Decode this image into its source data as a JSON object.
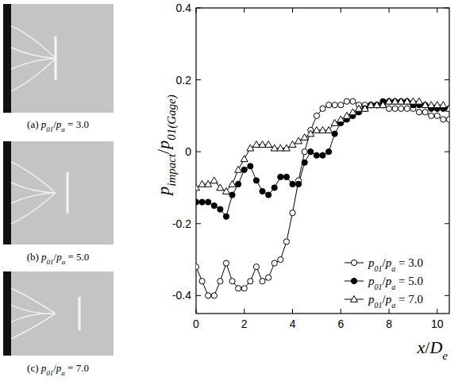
{
  "chart_data": {
    "type": "line",
    "x_label": "x/De",
    "y_label": "pimpact/p01(Gage)",
    "x": [
      0,
      0.25,
      0.5,
      0.75,
      1,
      1.25,
      1.5,
      1.75,
      2,
      2.25,
      2.5,
      2.75,
      3,
      3.25,
      3.5,
      3.75,
      4,
      4.25,
      4.5,
      4.75,
      5,
      5.25,
      5.5,
      5.75,
      6,
      6.25,
      6.5,
      6.75,
      7,
      7.25,
      7.5,
      7.75,
      8,
      8.25,
      8.5,
      8.75,
      9,
      9.25,
      9.5,
      9.75,
      10,
      10.25,
      10.5
    ],
    "series": [
      {
        "name": "p01/pa = 3.0",
        "color": "#000000",
        "marker": "open-circle",
        "line_style": "solid",
        "values": [
          -0.32,
          -0.36,
          -0.4,
          -0.4,
          -0.36,
          -0.31,
          -0.36,
          -0.38,
          -0.38,
          -0.36,
          -0.32,
          -0.36,
          -0.35,
          -0.31,
          -0.3,
          -0.25,
          -0.17,
          -0.08,
          0.0,
          0.06,
          0.1,
          0.12,
          0.13,
          0.13,
          0.13,
          0.14,
          0.14,
          0.13,
          0.13,
          0.13,
          0.13,
          0.13,
          0.12,
          0.12,
          0.12,
          0.12,
          0.12,
          0.11,
          0.11,
          0.1,
          0.1,
          0.09,
          0.09
        ]
      },
      {
        "name": "p01/pa = 5.0",
        "color": "#000000",
        "marker": "filled-circle",
        "line_style": "solid",
        "values": [
          -0.14,
          -0.14,
          -0.14,
          -0.15,
          -0.16,
          -0.18,
          -0.12,
          -0.09,
          -0.05,
          -0.04,
          -0.08,
          -0.11,
          -0.12,
          -0.1,
          -0.07,
          -0.07,
          -0.09,
          -0.09,
          -0.03,
          0.0,
          -0.01,
          -0.01,
          0.0,
          0.05,
          0.08,
          0.09,
          0.1,
          0.11,
          0.12,
          0.13,
          0.13,
          0.14,
          0.14,
          0.14,
          0.14,
          0.14,
          0.13,
          0.13,
          0.13,
          0.12,
          0.12,
          0.12,
          0.12
        ]
      },
      {
        "name": "p01/pa = 7.0",
        "color": "#000000",
        "marker": "open-triangle",
        "line_style": "solid",
        "values": [
          -0.1,
          -0.09,
          -0.09,
          -0.08,
          -0.1,
          -0.11,
          -0.09,
          -0.05,
          -0.02,
          0.01,
          0.02,
          0.02,
          0.02,
          0.01,
          0.01,
          0.01,
          0.02,
          0.03,
          0.04,
          0.05,
          0.06,
          0.06,
          0.06,
          0.08,
          0.09,
          0.1,
          0.11,
          0.12,
          0.12,
          0.13,
          0.13,
          0.13,
          0.14,
          0.14,
          0.14,
          0.14,
          0.14,
          0.14,
          0.13,
          0.13,
          0.13,
          0.13,
          0.12
        ]
      }
    ],
    "xlim": [
      0,
      10.5
    ],
    "xticks": [
      0,
      2,
      4,
      6,
      8,
      10
    ],
    "ylim": [
      -0.45,
      0.4
    ],
    "yticks": [
      -0.4,
      -0.2,
      0,
      0.2,
      0.4
    ],
    "grid": false,
    "legend": "lower right"
  },
  "images": [
    {
      "caption": "(a) p01/pa = 3.0"
    },
    {
      "caption": "(b) p01/pa = 5.0"
    },
    {
      "caption": "(c) p01/pa = 7.0"
    }
  ]
}
